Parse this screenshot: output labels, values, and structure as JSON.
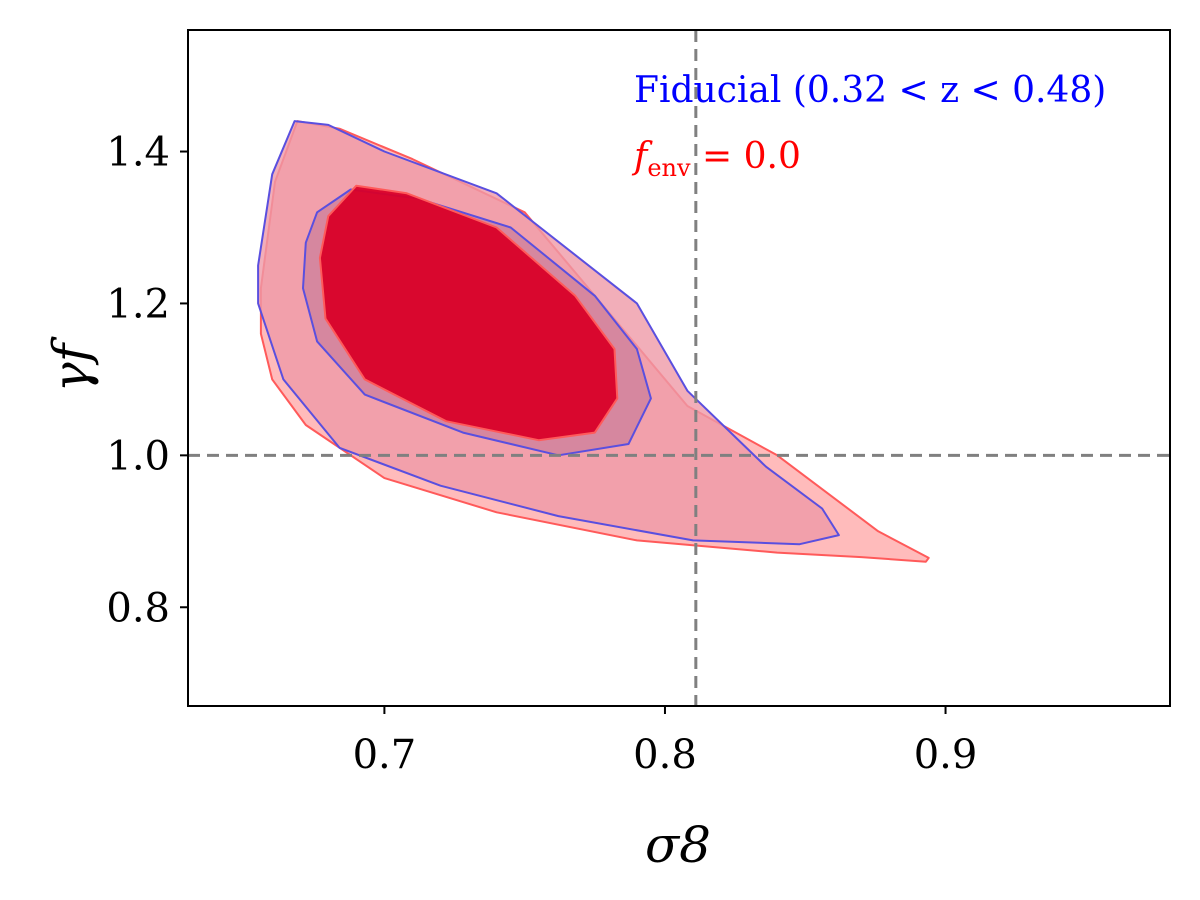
{
  "chart_data": {
    "type": "contour",
    "xlabel": "σ8",
    "ylabel": "γf",
    "xlim": [
      0.63,
      0.98
    ],
    "ylim": [
      0.67,
      1.56
    ],
    "x_ticks": [
      0.7,
      0.8,
      0.9
    ],
    "y_ticks": [
      0.8,
      1.0,
      1.2,
      1.4
    ],
    "x_tick_labels": [
      "0.7",
      "0.8",
      "0.9"
    ],
    "y_tick_labels": [
      "0.8",
      "1.0",
      "1.2",
      "1.4"
    ],
    "reference_lines": {
      "x": 0.811,
      "y": 1.0
    },
    "legend": {
      "placement": "top-right",
      "entries": [
        {
          "label": "Fiducial (0.32 < z < 0.48)",
          "color": "#0000ff"
        },
        {
          "label": "f",
          "subscript": "env",
          "suffix": " = 0.0",
          "color": "#ff0000"
        }
      ]
    },
    "series": [
      {
        "color": "#5a4fdf",
        "contours": [
          {
            "level": "68%",
            "fill": "#d4869e",
            "points": [
              [
                0.672,
                1.28
              ],
              [
                0.676,
                1.32
              ],
              [
                0.688,
                1.35
              ],
              [
                0.712,
                1.338
              ],
              [
                0.745,
                1.3
              ],
              [
                0.775,
                1.21
              ],
              [
                0.79,
                1.14
              ],
              [
                0.795,
                1.075
              ],
              [
                0.787,
                1.015
              ],
              [
                0.762,
                1.0
              ],
              [
                0.728,
                1.03
              ],
              [
                0.693,
                1.08
              ],
              [
                0.676,
                1.15
              ],
              [
                0.671,
                1.22
              ]
            ]
          },
          {
            "level": "95%",
            "fill": "#ef9aa8",
            "points": [
              [
                0.655,
                1.25
              ],
              [
                0.66,
                1.37
              ],
              [
                0.668,
                1.44
              ],
              [
                0.68,
                1.435
              ],
              [
                0.7,
                1.4
              ],
              [
                0.74,
                1.345
              ],
              [
                0.79,
                1.2
              ],
              [
                0.808,
                1.085
              ],
              [
                0.836,
                0.985
              ],
              [
                0.856,
                0.93
              ],
              [
                0.862,
                0.895
              ],
              [
                0.848,
                0.883
              ],
              [
                0.81,
                0.888
              ],
              [
                0.762,
                0.92
              ],
              [
                0.72,
                0.96
              ],
              [
                0.684,
                1.01
              ],
              [
                0.664,
                1.1
              ],
              [
                0.655,
                1.2
              ]
            ]
          }
        ]
      },
      {
        "color": "#ff5a5a",
        "contours": [
          {
            "level": "68%",
            "fill": "#d90028",
            "points": [
              [
                0.677,
                1.26
              ],
              [
                0.68,
                1.315
              ],
              [
                0.69,
                1.355
              ],
              [
                0.708,
                1.345
              ],
              [
                0.74,
                1.3
              ],
              [
                0.768,
                1.21
              ],
              [
                0.782,
                1.14
              ],
              [
                0.783,
                1.075
              ],
              [
                0.775,
                1.03
              ],
              [
                0.755,
                1.02
              ],
              [
                0.722,
                1.045
              ],
              [
                0.693,
                1.1
              ],
              [
                0.679,
                1.18
              ]
            ]
          },
          {
            "level": "95%",
            "fill": "#ffaaaa",
            "points": [
              [
                0.656,
                1.22
              ],
              [
                0.661,
                1.36
              ],
              [
                0.669,
                1.44
              ],
              [
                0.684,
                1.43
              ],
              [
                0.71,
                1.39
              ],
              [
                0.75,
                1.32
              ],
              [
                0.808,
                1.065
              ],
              [
                0.84,
                1.0
              ],
              [
                0.876,
                0.9
              ],
              [
                0.894,
                0.865
              ],
              [
                0.893,
                0.86
              ],
              [
                0.87,
                0.866
              ],
              [
                0.84,
                0.872
              ],
              [
                0.79,
                0.888
              ],
              [
                0.74,
                0.925
              ],
              [
                0.7,
                0.97
              ],
              [
                0.672,
                1.04
              ],
              [
                0.66,
                1.1
              ],
              [
                0.656,
                1.16
              ]
            ]
          }
        ]
      }
    ]
  }
}
